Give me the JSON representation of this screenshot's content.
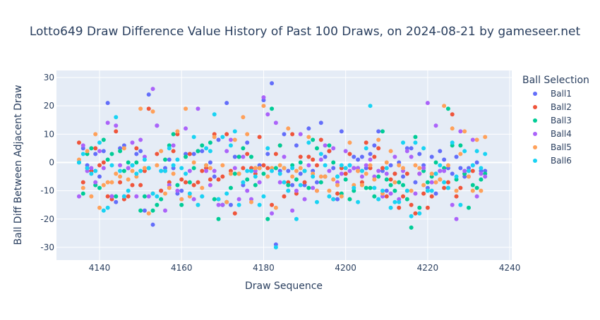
{
  "chart_data": {
    "type": "scatter",
    "title": "Lotto649 Draw Difference Value History of Past 100 Draws, on 2024-08-21 by gameseer.net",
    "xlabel": "Draw Sequence",
    "ylabel": "Ball Diff Between Adjacent Draw",
    "xlim": [
      4129.5,
      4240.5
    ],
    "ylim": [
      -34.5,
      32.5
    ],
    "xticks": [
      4140,
      4160,
      4180,
      4200,
      4220,
      4240
    ],
    "yticks": [
      -30,
      -20,
      -10,
      0,
      10,
      20,
      30
    ],
    "grid": true,
    "legend": {
      "title": "Ball Selection",
      "placement": "right"
    },
    "colors": {
      "plot_background": "#E5ECF6",
      "grid": "#FFFFFF",
      "Ball1": "#636EFA",
      "Ball2": "#EF553B",
      "Ball3": "#00CC96",
      "Ball4": "#AB63FA",
      "Ball5": "#FFA15A",
      "Ball6": "#19D3F3"
    },
    "x": [
      4135,
      4136,
      4137,
      4138,
      4139,
      4140,
      4141,
      4142,
      4143,
      4144,
      4145,
      4146,
      4147,
      4148,
      4149,
      4150,
      4151,
      4152,
      4153,
      4154,
      4155,
      4156,
      4157,
      4158,
      4159,
      4160,
      4161,
      4162,
      4163,
      4164,
      4165,
      4166,
      4167,
      4168,
      4169,
      4170,
      4171,
      4172,
      4173,
      4174,
      4175,
      4176,
      4177,
      4178,
      4179,
      4180,
      4181,
      4182,
      4183,
      4184,
      4185,
      4186,
      4187,
      4188,
      4189,
      4190,
      4191,
      4192,
      4193,
      4194,
      4195,
      4196,
      4197,
      4198,
      4199,
      4200,
      4201,
      4202,
      4203,
      4204,
      4205,
      4206,
      4207,
      4208,
      4209,
      4210,
      4211,
      4212,
      4213,
      4214,
      4215,
      4216,
      4217,
      4218,
      4219,
      4220,
      4221,
      4222,
      4223,
      4224,
      4225,
      4226,
      4227,
      4228,
      4229,
      4230,
      4231,
      4232,
      4233,
      4234
    ],
    "series": [
      {
        "name": "Ball1",
        "values": [
          0,
          5,
          -1,
          -3,
          3,
          -5,
          4,
          21,
          -12,
          -14,
          5,
          6,
          -2,
          -1,
          3,
          4,
          -17,
          24,
          -22,
          13,
          -10,
          -2,
          1,
          -2,
          -11,
          -10,
          3,
          3,
          3,
          4,
          4,
          -2,
          0,
          -5,
          8,
          -15,
          21,
          -15,
          2,
          2,
          -8,
          7,
          -3,
          -2,
          -1,
          22,
          3,
          28,
          -29,
          -3,
          10,
          -3,
          -8,
          6,
          -4,
          -8,
          12,
          -3,
          -7,
          14,
          2,
          4,
          -2,
          -13,
          11,
          -4,
          -1,
          2,
          1,
          2,
          -2,
          3,
          6,
          11,
          -3,
          -10,
          -1,
          -4,
          0,
          -5,
          5,
          5,
          -7,
          3,
          -1,
          -9,
          2,
          -11,
          4,
          1,
          -2,
          -4,
          2,
          -2,
          -5,
          -2,
          -1,
          0,
          -3,
          -3
        ]
      },
      {
        "name": "Ball2",
        "values": [
          7,
          -7,
          -2,
          -3,
          5,
          -1,
          0,
          -12,
          -13,
          11,
          -7,
          -13,
          -12,
          -8,
          5,
          -8,
          -3,
          19,
          -11,
          3,
          -10,
          -3,
          -7,
          4,
          10,
          -6,
          -7,
          3,
          -8,
          -7,
          -3,
          -2,
          -6,
          10,
          -6,
          -5,
          10,
          -3,
          -18,
          -4,
          -2,
          3,
          -2,
          -4,
          9,
          -1,
          -2,
          -15,
          3,
          6,
          -12,
          -7,
          10,
          -11,
          2,
          -7,
          2,
          1,
          -1,
          8,
          -5,
          4,
          -13,
          -11,
          -2,
          -4,
          3,
          -2,
          -3,
          -7,
          7,
          -2,
          2,
          5,
          -2,
          -12,
          -6,
          -4,
          -16,
          -12,
          -4,
          -15,
          -18,
          -4,
          -11,
          -16,
          -12,
          -4,
          -6,
          -9,
          -7,
          17,
          -12,
          -9,
          -4,
          -3,
          -3
        ]
      },
      {
        "name": "Ball3",
        "values": [
          0,
          -11,
          3,
          5,
          -8,
          -9,
          8,
          1,
          3,
          -12,
          4,
          -3,
          0,
          -1,
          0,
          -17,
          -12,
          -2,
          -17,
          -15,
          -13,
          1,
          6,
          10,
          -8,
          -15,
          2,
          -7,
          -2,
          4,
          6,
          -1,
          7,
          -13,
          -20,
          -15,
          -14,
          -9,
          -4,
          2,
          5,
          -6,
          2,
          -8,
          -2,
          -4,
          -20,
          19,
          -2,
          6,
          -2,
          -8,
          -1,
          -6,
          0,
          -3,
          -9,
          8,
          5,
          -7,
          -5,
          6,
          0,
          -5,
          -11,
          -6,
          -13,
          -10,
          -2,
          -3,
          -9,
          -9,
          -12,
          -5,
          11,
          -6,
          -8,
          -10,
          -7,
          -8,
          -13,
          -23,
          9,
          -16,
          -3,
          -7,
          -5,
          0,
          -3,
          -2,
          19,
          6,
          -6,
          6,
          -4,
          -16,
          -8,
          -9,
          -6,
          -4
        ]
      },
      {
        "name": "Ball4",
        "values": [
          -12,
          6,
          -3,
          -2,
          -7,
          4,
          -2,
          14,
          -12,
          13,
          -1,
          -12,
          -2,
          7,
          -12,
          8,
          2,
          -12,
          26,
          13,
          -3,
          -17,
          -8,
          6,
          -10,
          -13,
          12,
          -3,
          -13,
          19,
          -12,
          -3,
          -8,
          -3,
          -15,
          -15,
          4,
          8,
          -2,
          -13,
          2,
          -10,
          -13,
          -3,
          -7,
          23,
          17,
          -18,
          14,
          -7,
          2,
          -10,
          -17,
          -10,
          10,
          -13,
          -1,
          -9,
          -10,
          1,
          6,
          -3,
          5,
          -7,
          -4,
          4,
          -3,
          -2,
          -2,
          -5,
          -1,
          1,
          -5,
          -3,
          -12,
          -4,
          -11,
          2,
          -13,
          -3,
          4,
          2,
          -11,
          -4,
          -2,
          21,
          -7,
          13,
          -3,
          -3,
          -9,
          -15,
          -20,
          11,
          -3,
          -5,
          8,
          -12,
          -4,
          -5
        ]
      },
      {
        "name": "Ball5",
        "values": [
          1,
          -9,
          4,
          -12,
          10,
          -16,
          -8,
          -7,
          -7,
          -4,
          -5,
          5,
          -6,
          -3,
          -5,
          19,
          -2,
          -18,
          18,
          -1,
          4,
          -11,
          -9,
          -4,
          11,
          -13,
          19,
          -12,
          0,
          -15,
          -9,
          -1,
          -2,
          9,
          -13,
          -1,
          -14,
          -4,
          8,
          -4,
          16,
          10,
          -14,
          -2,
          -2,
          20,
          -5,
          -2,
          -16,
          -1,
          -2,
          12,
          -5,
          -3,
          -2,
          -3,
          9,
          -4,
          -10,
          -5,
          -5,
          -10,
          -6,
          -8,
          -12,
          -2,
          7,
          -8,
          -3,
          -8,
          -4,
          -1,
          -6,
          8,
          -11,
          0,
          4,
          -7,
          -1,
          -2,
          -10,
          -10,
          -1,
          -2,
          -8,
          -10,
          -4,
          -7,
          -6,
          20,
          -1,
          12,
          -10,
          3,
          11,
          -5,
          -10,
          8,
          -10,
          9
        ]
      },
      {
        "name": "Ball6",
        "values": [
          0,
          3,
          -2,
          -4,
          -3,
          7,
          -17,
          -16,
          -1,
          16,
          -3,
          -12,
          -10,
          -1,
          -4,
          -3,
          1,
          -2,
          -11,
          -12,
          -3,
          -3,
          5,
          -1,
          1,
          -2,
          -4,
          -11,
          9,
          -15,
          -12,
          5,
          4,
          17,
          -13,
          9,
          -11,
          6,
          11,
          -15,
          -7,
          -3,
          -3,
          -5,
          -15,
          -12,
          5,
          -3,
          -30,
          -4,
          -7,
          -10,
          -2,
          -20,
          -8,
          -3,
          7,
          -5,
          -14,
          3,
          -1,
          -12,
          -13,
          -5,
          -1,
          -2,
          -1,
          -9,
          -14,
          -3,
          5,
          20,
          -9,
          -13,
          -10,
          -2,
          -16,
          -14,
          -14,
          7,
          -10,
          -19,
          7,
          -18,
          5,
          -10,
          -10,
          -4,
          -1,
          -7,
          -9,
          7,
          -5,
          -15,
          4,
          -3,
          -1,
          4,
          -2,
          3
        ]
      }
    ]
  }
}
